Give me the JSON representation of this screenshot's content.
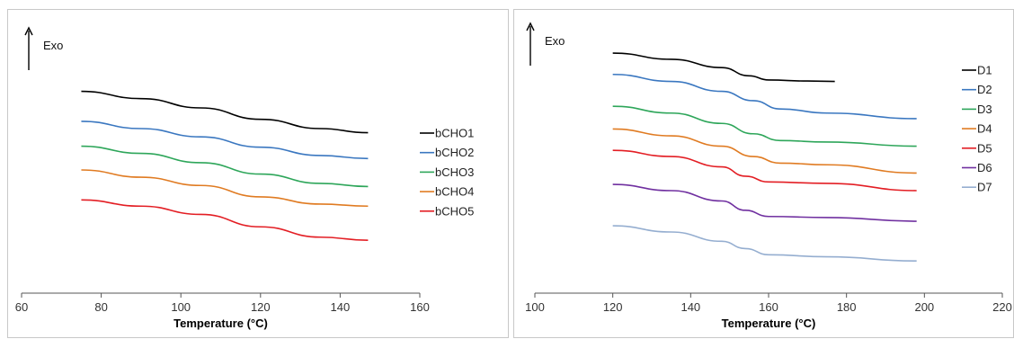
{
  "chart_data": [
    {
      "type": "line",
      "title": "",
      "xlabel": "Temperature (°C)",
      "ylabel": "Exo",
      "xlim": [
        60,
        160
      ],
      "xticks": [
        60,
        80,
        100,
        120,
        140,
        160
      ],
      "grid": false,
      "legend": "right",
      "series": [
        {
          "name": "bCHO1",
          "color": "#000000",
          "x": [
            75,
            90,
            105,
            120,
            135,
            147
          ],
          "y": [
            0.78,
            0.745,
            0.7,
            0.645,
            0.6,
            0.58
          ]
        },
        {
          "name": "bCHO2",
          "color": "#3a77c0",
          "x": [
            75,
            90,
            105,
            120,
            135,
            147
          ],
          "y": [
            0.635,
            0.6,
            0.56,
            0.51,
            0.47,
            0.455
          ]
        },
        {
          "name": "bCHO3",
          "color": "#2ea65a",
          "x": [
            75,
            90,
            105,
            120,
            135,
            147
          ],
          "y": [
            0.515,
            0.48,
            0.435,
            0.38,
            0.335,
            0.32
          ]
        },
        {
          "name": "bCHO4",
          "color": "#e07b22",
          "x": [
            75,
            90,
            105,
            120,
            135,
            147
          ],
          "y": [
            0.4,
            0.365,
            0.325,
            0.27,
            0.235,
            0.225
          ]
        },
        {
          "name": "bCHO5",
          "color": "#e31e24",
          "x": [
            75,
            90,
            105,
            120,
            135,
            147
          ],
          "y": [
            0.255,
            0.225,
            0.185,
            0.125,
            0.075,
            0.06
          ]
        }
      ]
    },
    {
      "type": "line",
      "title": "",
      "xlabel": "Temperature (°C)",
      "ylabel": "Exo",
      "xlim": [
        100,
        220
      ],
      "xticks": [
        100,
        120,
        140,
        160,
        180,
        200,
        220
      ],
      "grid": false,
      "legend": "right",
      "series": [
        {
          "name": "D1",
          "color": "#000000",
          "x": [
            120,
            135,
            148,
            155,
            160,
            170,
            177
          ],
          "y": [
            0.965,
            0.935,
            0.895,
            0.855,
            0.835,
            0.83,
            0.828
          ]
        },
        {
          "name": "D2",
          "color": "#3a77c0",
          "x": [
            120,
            135,
            148,
            156,
            163,
            175,
            198
          ],
          "y": [
            0.862,
            0.828,
            0.78,
            0.735,
            0.695,
            0.675,
            0.648
          ]
        },
        {
          "name": "D3",
          "color": "#2ea65a",
          "x": [
            120,
            135,
            148,
            156,
            163,
            175,
            198
          ],
          "y": [
            0.708,
            0.675,
            0.625,
            0.575,
            0.542,
            0.535,
            0.515
          ]
        },
        {
          "name": "D4",
          "color": "#e07b22",
          "x": [
            120,
            135,
            148,
            156,
            163,
            175,
            198
          ],
          "y": [
            0.598,
            0.565,
            0.515,
            0.465,
            0.433,
            0.425,
            0.385
          ]
        },
        {
          "name": "D5",
          "color": "#e31e24",
          "x": [
            120,
            135,
            148,
            154,
            160,
            175,
            198
          ],
          "y": [
            0.495,
            0.465,
            0.415,
            0.37,
            0.342,
            0.335,
            0.3
          ]
        },
        {
          "name": "D6",
          "color": "#7030a0",
          "x": [
            120,
            135,
            148,
            154,
            160,
            175,
            198
          ],
          "y": [
            0.33,
            0.3,
            0.25,
            0.205,
            0.175,
            0.17,
            0.152
          ]
        },
        {
          "name": "D7",
          "color": "#95aed0",
          "x": [
            120,
            135,
            148,
            154,
            160,
            175,
            198
          ],
          "y": [
            0.13,
            0.1,
            0.055,
            0.02,
            -0.01,
            -0.02,
            -0.04
          ]
        }
      ]
    }
  ]
}
